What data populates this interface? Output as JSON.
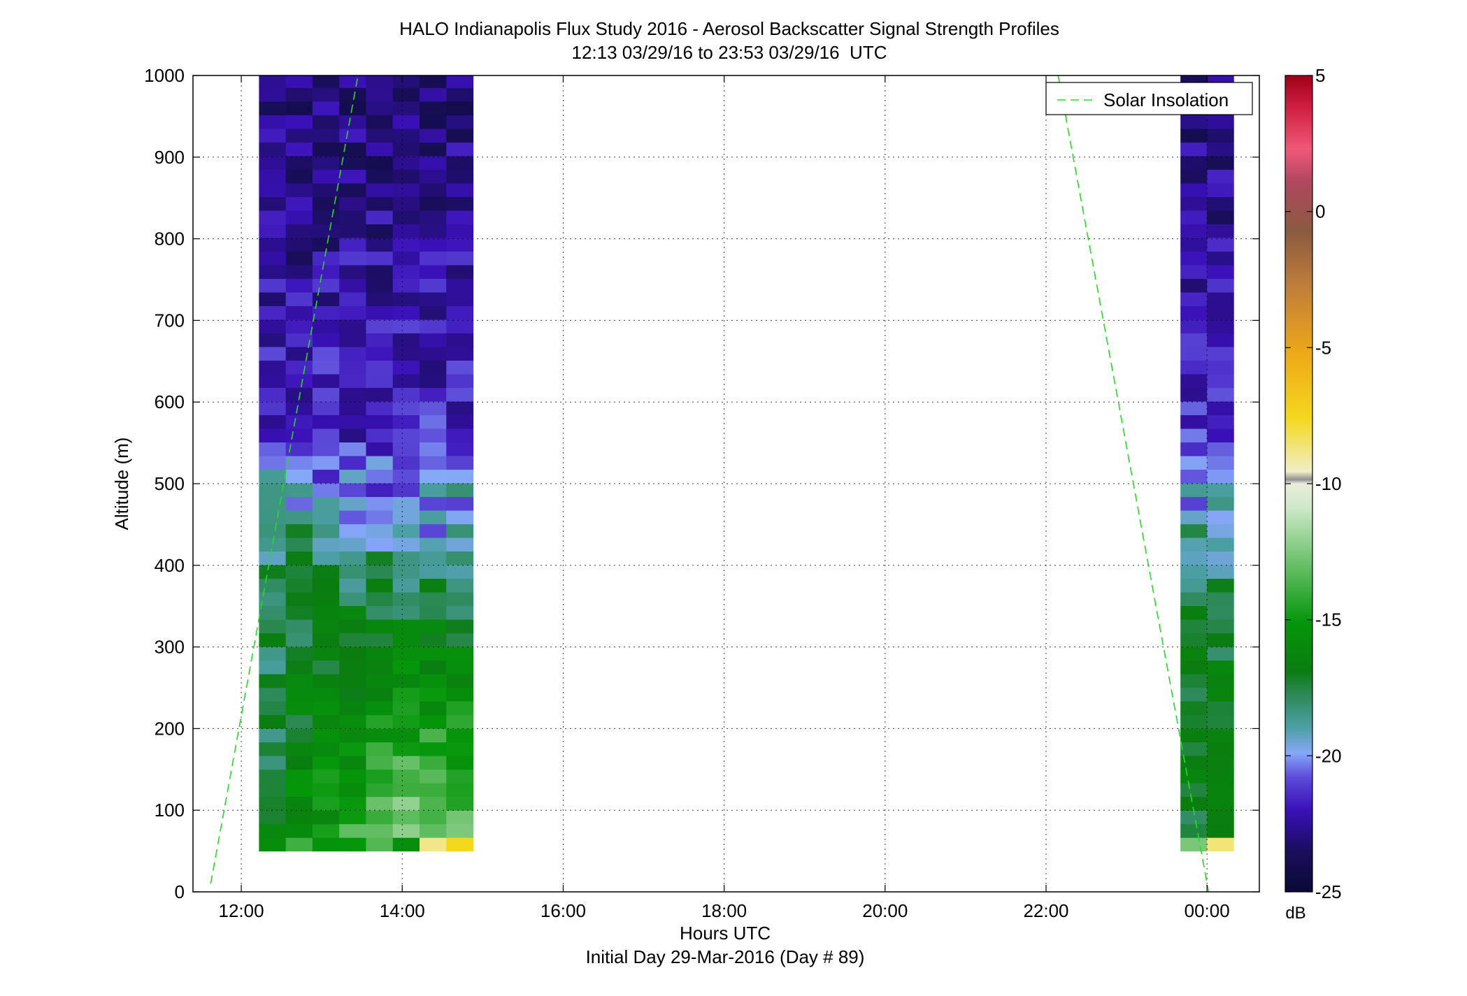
{
  "chart_data": {
    "type": "heatmap",
    "title": "HALO Indianapolis Flux Study 2016 - Aerosol Backscatter Signal Strength Profiles",
    "subtitle": "12:13 03/29/16 to 23:53 03/29/16  UTC",
    "xlabel": "Hours UTC",
    "xlabel2": "Initial Day 29-Mar-2016 (Day # 89)",
    "ylabel": "Altitude (m)",
    "x_range_hours": [
      11.4,
      24.65
    ],
    "xlim": [
      11.4,
      24.65
    ],
    "ylim": [
      0,
      1000
    ],
    "x_ticks": [
      12,
      14,
      16,
      18,
      20,
      22,
      24
    ],
    "x_tick_labels": [
      "12:00",
      "14:00",
      "16:00",
      "18:00",
      "20:00",
      "22:00",
      "00:00"
    ],
    "y_ticks": [
      0,
      100,
      200,
      300,
      400,
      500,
      600,
      700,
      800,
      900,
      1000
    ],
    "y_tick_labels": [
      "0",
      "100",
      "200",
      "300",
      "400",
      "500",
      "600",
      "700",
      "800",
      "900",
      "1000"
    ],
    "grid": true,
    "legend": {
      "entries": [
        "Solar Insolation"
      ],
      "placement": "top-right"
    },
    "colorbar": {
      "unit": "dB",
      "range": [
        -25,
        5
      ],
      "ticks": [
        5,
        0,
        -5,
        -10,
        -15,
        -20,
        -25
      ],
      "tick_labels": [
        "5",
        "0",
        "-5",
        "-10",
        "-15",
        "-20",
        "-25"
      ]
    },
    "heatmap": {
      "altitude_range_m": [
        50,
        1000
      ],
      "altitude_step_m": 16.7,
      "blocks": [
        {
          "time_start": 12.22,
          "time_end": 14.88,
          "columns": 8,
          "column_bases_db": [
            -17.2,
            -15.6,
            -14.8,
            -14.0,
            -13.2,
            -12.4,
            -12.0,
            -12.6
          ],
          "ground_values_db": [
            -15.8,
            -13.8,
            -15.2,
            -15.0,
            -13.4,
            -15.6,
            -8.8,
            -7.6
          ]
        },
        {
          "time_start": 23.67,
          "time_end": 24.33,
          "columns": 2,
          "column_bases_db": [
            -16.8,
            -16.2
          ],
          "ground_values_db": [
            -12.6,
            -8.6
          ]
        }
      ]
    },
    "series": [
      {
        "name": "Solar Insolation",
        "style": "dashed",
        "color": "#22dd22",
        "x": [
          11.62,
          13.45
        ],
        "y": [
          10,
          1000
        ]
      },
      {
        "name": "Solar Insolation",
        "style": "dashed",
        "color": "#22dd22",
        "x": [
          22.15,
          24.02
        ],
        "y": [
          1000,
          0
        ]
      }
    ]
  }
}
